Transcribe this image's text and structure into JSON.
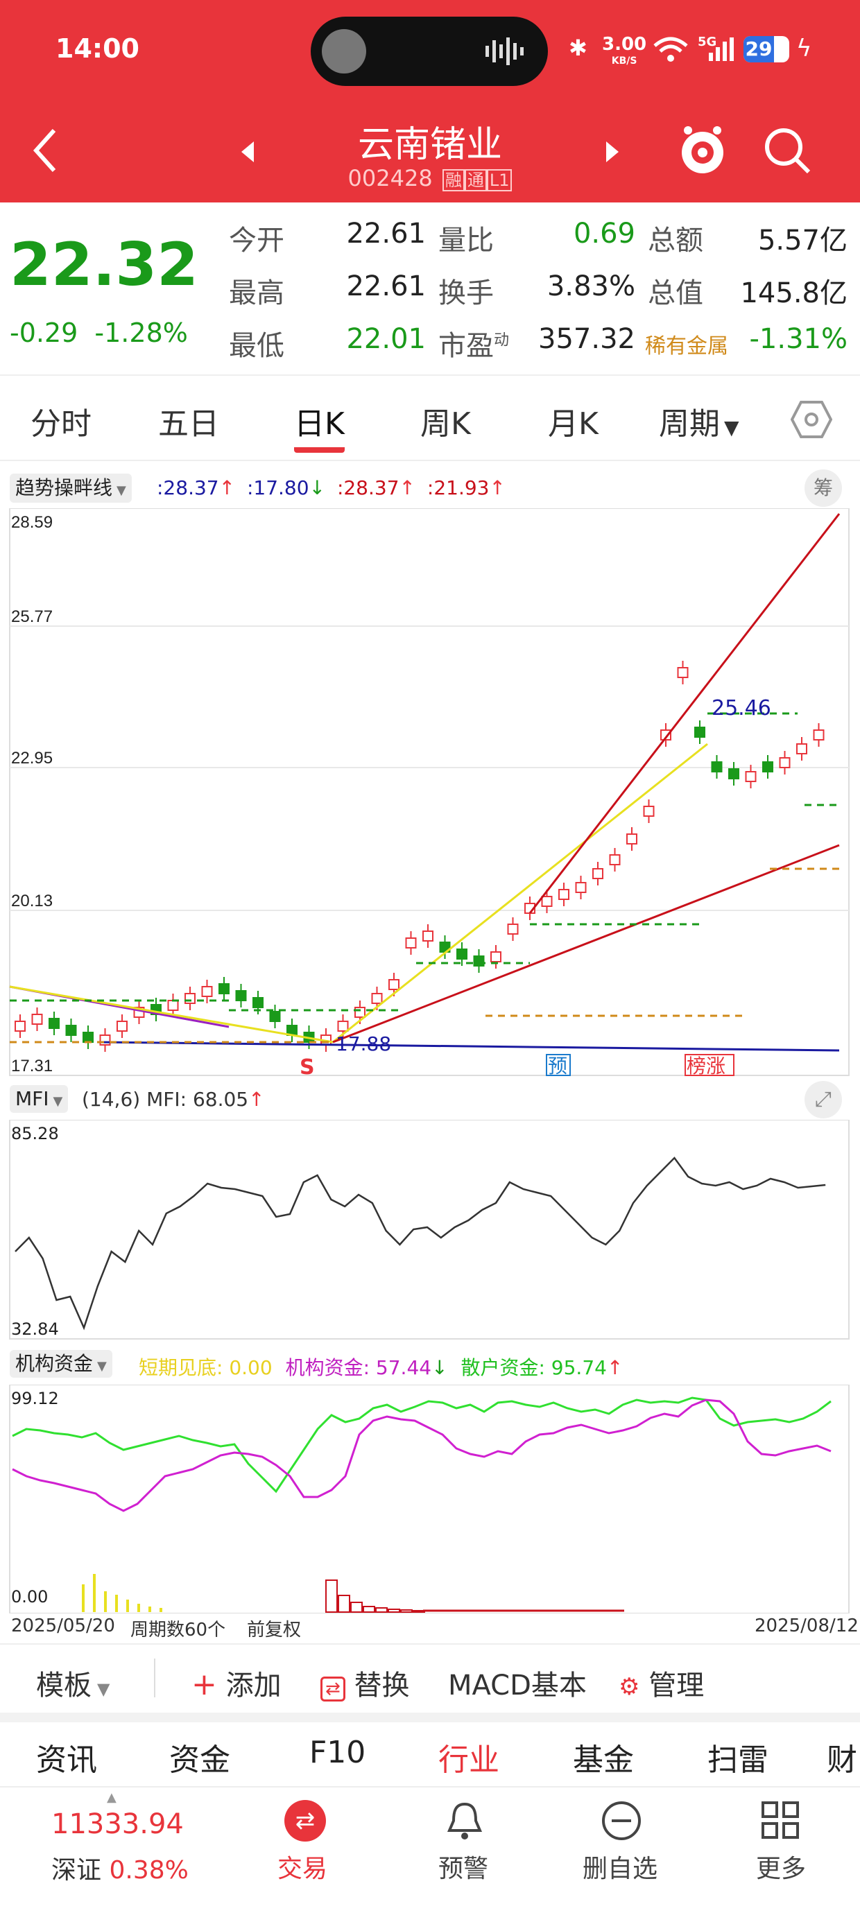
{
  "status_bar": {
    "time": "14:00",
    "net_speed": "3.00",
    "net_unit": "KB/S",
    "net_type": "5G",
    "battery": "29"
  },
  "nav": {
    "title": "云南锗业",
    "code": "002428",
    "badges": [
      "融",
      "通",
      "L1"
    ]
  },
  "quote": {
    "price": "22.32",
    "change": "-0.29",
    "change_pct": "-1.28%",
    "fields": [
      {
        "label": "今开",
        "value": "22.61"
      },
      {
        "label": "量比",
        "value": "0.69"
      },
      {
        "label": "总额",
        "value": "5.57亿"
      },
      {
        "label": "最高",
        "value": "22.61"
      },
      {
        "label": "换手",
        "value": "3.83%"
      },
      {
        "label": "总值",
        "value": "145.8亿"
      },
      {
        "label": "最低",
        "value": "22.01"
      },
      {
        "label": "市盈",
        "sup": "动",
        "value": "357.32"
      },
      {
        "label": "稀有金属",
        "value": "-1.31%"
      }
    ]
  },
  "tabs": [
    "分时",
    "五日",
    "日K",
    "周K",
    "月K",
    "周期"
  ],
  "main_indicator": {
    "name": "趋势操畔线",
    "v1": ":28.37",
    "v2": ":17.80",
    "v3": ":28.37",
    "v4": ":21.93",
    "button": "筹"
  },
  "main_axis": [
    "28.59",
    "25.77",
    "22.95",
    "20.13",
    "17.31"
  ],
  "main_labels": {
    "low_label": "17.88",
    "high_label": "25.46",
    "s": "S",
    "yu": "预",
    "bangzhang": "榜涨"
  },
  "mfi": {
    "name": "MFI",
    "params": "(14,6)",
    "value": "MFI: 68.05",
    "top": "85.28",
    "bottom": "32.84"
  },
  "fund": {
    "name": "机构资金",
    "short": "短期见底: 0.00",
    "inst": "机构资金: 57.44",
    "retail": "散户资金: 95.74",
    "top": "99.12",
    "bottom": "0.00"
  },
  "date_axis": {
    "start": "2025/05/20",
    "count": "周期数60个",
    "fq": "前复权",
    "end": "2025/08/12"
  },
  "toolbar": {
    "template": "模板",
    "add": "添加",
    "replace": "替换",
    "macd": "MACD基本",
    "manage": "管理"
  },
  "subtabs": [
    "资讯",
    "资金",
    "F10",
    "行业",
    "基金",
    "扫雷",
    "财"
  ],
  "bottom": {
    "index_value": "11333.94",
    "index_name": "深证",
    "index_pct": "0.38%",
    "trade": "交易",
    "alert": "预警",
    "delete": "删自选",
    "more": "更多"
  },
  "colors": {
    "red": "#e8343b",
    "green": "#1a9a1a",
    "blue": "#1a1aa0",
    "orange": "#d08a1a"
  }
}
